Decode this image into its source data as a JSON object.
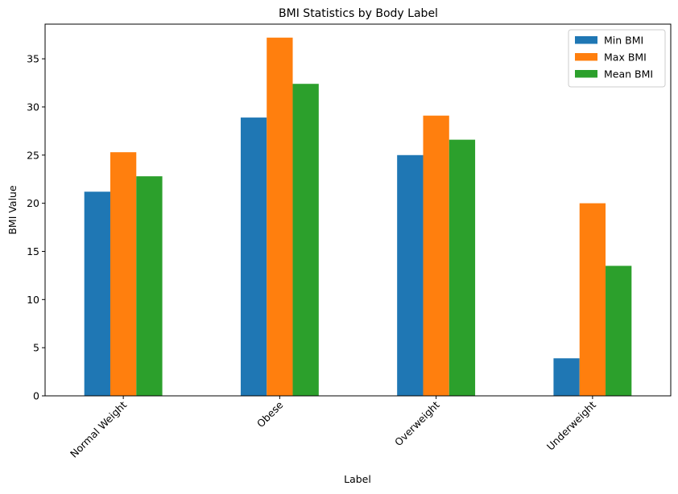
{
  "chart_data": {
    "type": "bar",
    "title": "BMI Statistics by Body Label",
    "xlabel": "Label",
    "ylabel": "BMI Value",
    "categories": [
      "Normal Weight",
      "Obese",
      "Overweight",
      "Underweight"
    ],
    "series": [
      {
        "name": "Min BMI",
        "color": "#1f77b4",
        "values": [
          21.2,
          28.9,
          25.0,
          3.9
        ]
      },
      {
        "name": "Max BMI",
        "color": "#ff7f0e",
        "values": [
          25.3,
          37.2,
          29.1,
          20.0
        ]
      },
      {
        "name": "Mean BMI",
        "color": "#2ca02c",
        "values": [
          22.8,
          32.4,
          26.6,
          13.5
        ]
      }
    ],
    "ylim": [
      0,
      38.6
    ],
    "yticks": [
      0,
      5,
      10,
      15,
      20,
      25,
      30,
      35
    ],
    "grid": false,
    "legend_position": "top-right"
  }
}
